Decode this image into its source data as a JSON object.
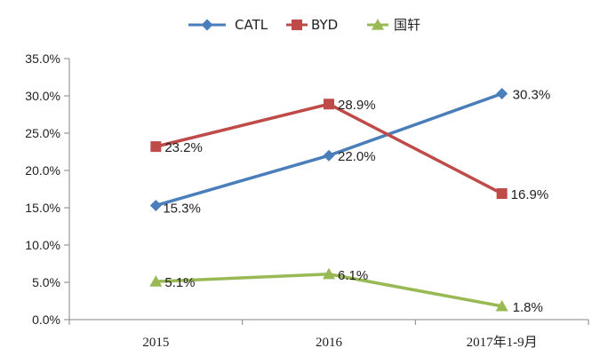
{
  "chart_data": {
    "type": "line",
    "categories": [
      "2015",
      "2016",
      "2017年1-9月"
    ],
    "ylim": [
      0,
      35
    ],
    "ytick_values": [
      0,
      5,
      10,
      15,
      20,
      25,
      30,
      35
    ],
    "ytick_labels": [
      "0.0%",
      "5.0%",
      "10.0%",
      "15.0%",
      "20.0%",
      "25.0%",
      "30.0%",
      "35.0%"
    ],
    "series": [
      {
        "name": "CATL",
        "color": "#4A7EBB",
        "marker": "diamond",
        "values": [
          15.3,
          22.0,
          30.3
        ],
        "labels": [
          "15.3%",
          "22.0%",
          "30.3%"
        ]
      },
      {
        "name": "BYD",
        "color": "#BE4B48",
        "marker": "square",
        "values": [
          23.2,
          28.9,
          16.9
        ],
        "labels": [
          "23.2%",
          "28.9%",
          "16.9%"
        ]
      },
      {
        "name": "国轩",
        "color": "#98B954",
        "marker": "triangle",
        "values": [
          5.1,
          6.1,
          1.8
        ],
        "labels": [
          "5.1%",
          "6.1%",
          "1.8%"
        ]
      }
    ],
    "title": "",
    "xlabel": "",
    "ylabel": "",
    "legend_position": "top-center"
  }
}
